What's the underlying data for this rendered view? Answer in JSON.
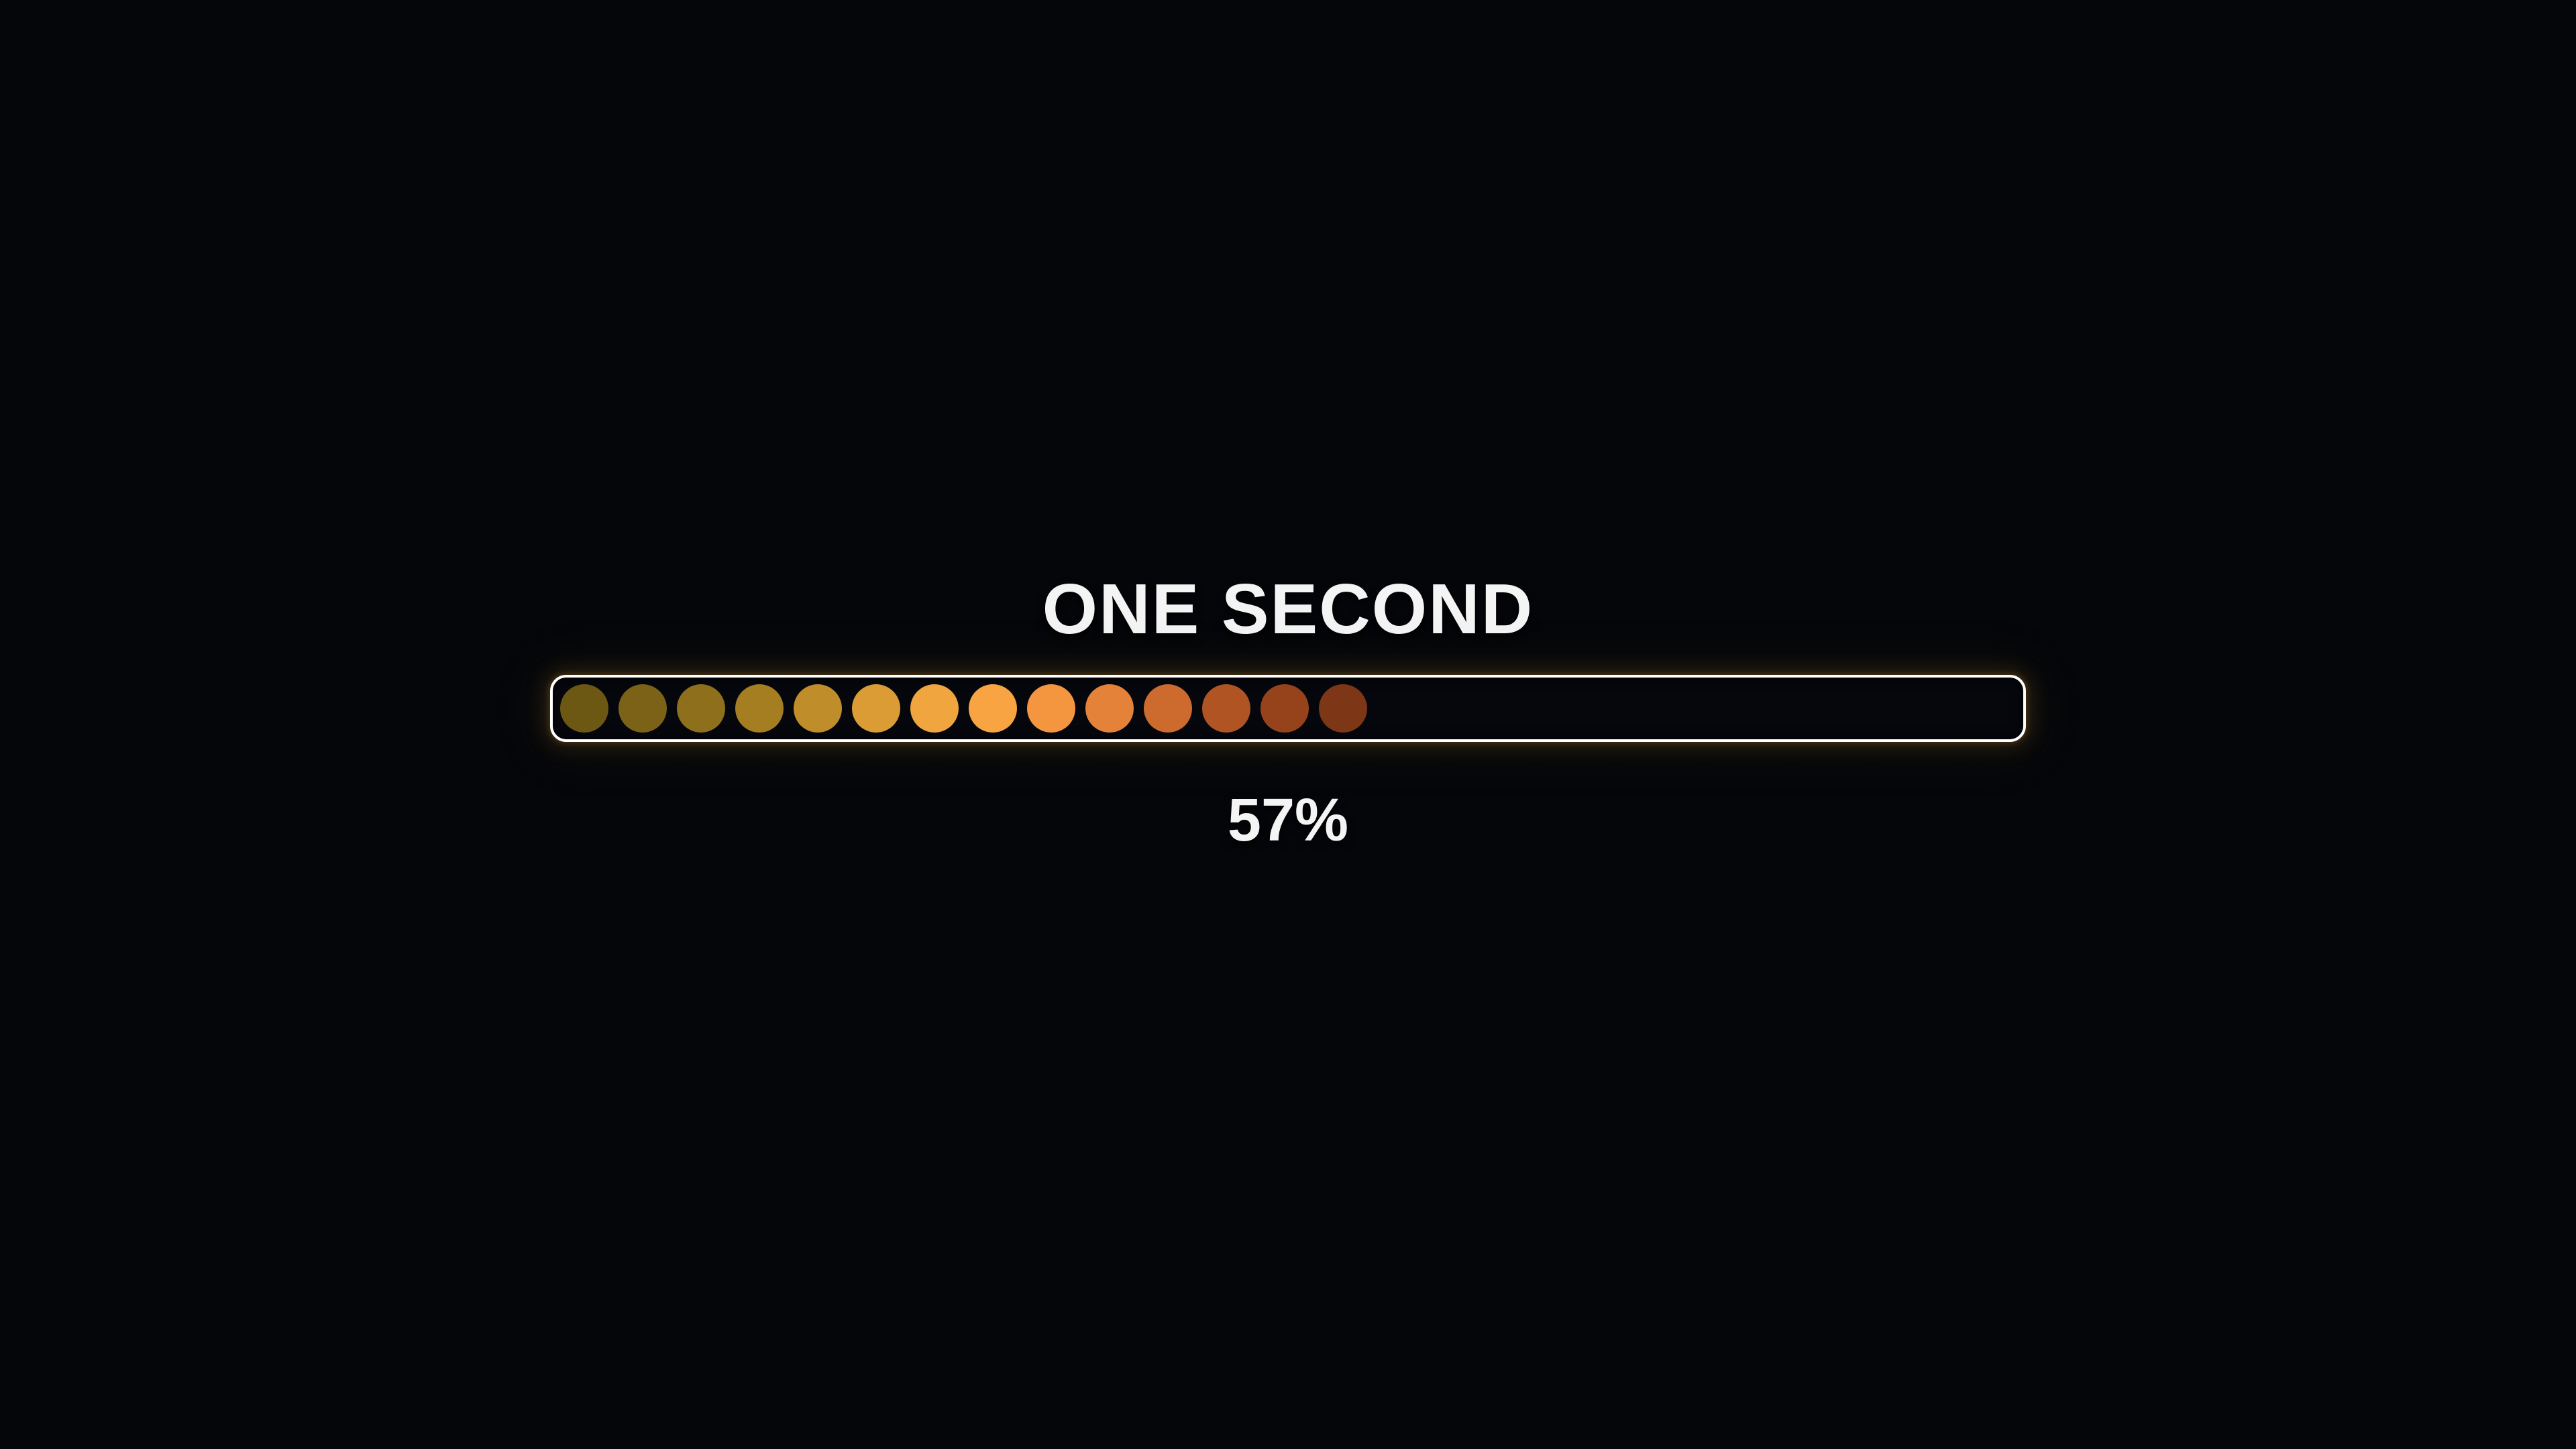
{
  "screen": {
    "title": "ONE SECOND",
    "progress": {
      "percent_label": "57%",
      "percent_value": 57,
      "dot_colors": [
        "#6d5813",
        "#7b6217",
        "#8e6f1c",
        "#a67e22",
        "#c08d2b",
        "#db9c35",
        "#f0a53e",
        "#f9a443",
        "#f49540",
        "#e5823a",
        "#cd6a2e",
        "#b05424",
        "#96431c",
        "#7d3616"
      ]
    },
    "colors": {
      "background": "#04060a",
      "bar_border": "#ffffff",
      "bar_background": "#05070d",
      "text": "#f4f4f4",
      "glow": "#a97a25"
    }
  }
}
